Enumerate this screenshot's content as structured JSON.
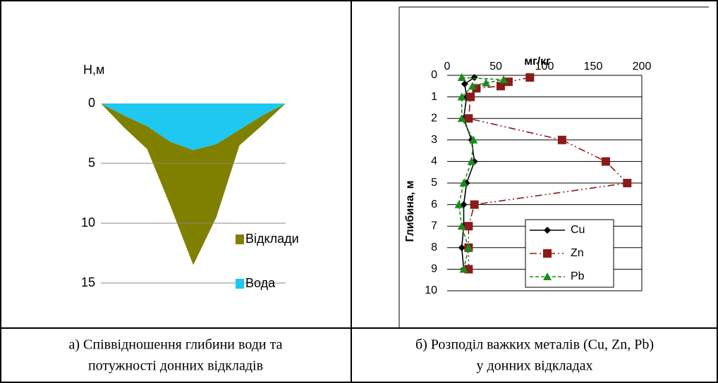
{
  "chart_data": [
    {
      "type": "area",
      "stacked": true,
      "y_label": "Н,м",
      "y_reversed": true,
      "ylim": [
        0,
        15
      ],
      "yticks": [
        0,
        5,
        10,
        15
      ],
      "grid": true,
      "legend": "right",
      "categories": [
        null,
        null,
        null,
        null,
        null,
        null,
        null,
        null,
        null
      ],
      "series": [
        {
          "name": "Відклади",
          "color": "#808000",
          "values": [
            0,
            1.0,
            1.9,
            5.3,
            9.6,
            6.1,
            1.3,
            0.8,
            0
          ]
        },
        {
          "name": "Вода",
          "color": "#1ec8f0",
          "values": [
            0,
            1.0,
            1.9,
            3.2,
            3.9,
            3.4,
            2.2,
            1.0,
            0
          ]
        }
      ]
    },
    {
      "type": "line",
      "x_label": "мг/кг",
      "y_label": "Глибина, м",
      "y_reversed": true,
      "x_axis": "top",
      "xlim": [
        0,
        200
      ],
      "xticks": [
        0,
        50,
        100,
        150,
        200
      ],
      "ylim": [
        0,
        10
      ],
      "yticks": [
        0,
        1,
        2,
        3,
        4,
        5,
        6,
        7,
        8,
        9,
        10
      ],
      "grid": true,
      "legend": "lower right",
      "series": [
        {
          "name": "Cu",
          "color": "#000000",
          "marker": "diamond",
          "dash": "solid",
          "x": [
            28,
            18,
            20,
            17,
            25,
            28,
            20,
            17,
            17,
            15,
            17
          ],
          "y": [
            0.1,
            0.4,
            1,
            2,
            3,
            4,
            5,
            6,
            7,
            8,
            9
          ]
        },
        {
          "name": "Zn",
          "color": "#8b1a1a",
          "marker": "square",
          "dash": "dashdot",
          "x": [
            85,
            63,
            55,
            30,
            24,
            22,
            118,
            163,
            185,
            28,
            22,
            22,
            22
          ],
          "y": [
            0.1,
            0.3,
            0.5,
            0.6,
            1,
            2,
            3,
            4,
            5,
            6,
            7,
            8,
            9
          ]
        },
        {
          "name": "Pb",
          "color": "#1a8c1a",
          "marker": "triangle",
          "dash": "dashed",
          "x": [
            15,
            58,
            40,
            26,
            15,
            15,
            27,
            25,
            17,
            12,
            15,
            22,
            17
          ],
          "y": [
            0.1,
            0.2,
            0.35,
            0.5,
            1,
            2,
            3,
            4,
            5,
            6,
            7,
            8,
            9
          ]
        }
      ]
    }
  ],
  "captions": [
    [
      "а) Співвідношення глибини води та",
      "потужності донних відкладів"
    ],
    [
      "б) Розподіл важких металів (Cu, Zn, Pb)",
      "у донних відкладах"
    ]
  ]
}
